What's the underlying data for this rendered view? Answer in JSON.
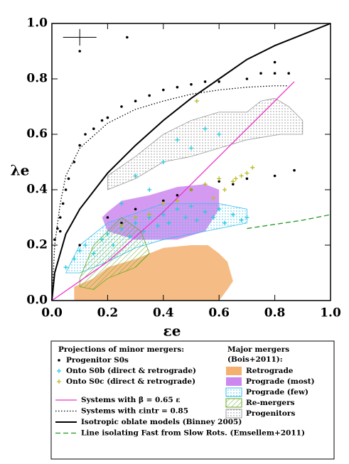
{
  "chart_data": {
    "type": "scatter",
    "x_label": "εe",
    "y_label": "λe",
    "xlim": [
      0,
      1
    ],
    "ylim": [
      0,
      1
    ],
    "xticks": [
      {
        "value": 0,
        "label": "0.0"
      },
      {
        "value": 0.2,
        "label": "0.2"
      },
      {
        "value": 0.4,
        "label": "0.4"
      },
      {
        "value": 0.6,
        "label": "0.6"
      },
      {
        "value": 0.8,
        "label": "0.8"
      },
      {
        "value": 1,
        "label": "1.0"
      }
    ],
    "yticks": [
      {
        "value": 0,
        "label": "0.0"
      },
      {
        "value": 0.2,
        "label": "0.2"
      },
      {
        "value": 0.4,
        "label": "0.4"
      },
      {
        "value": 0.6,
        "label": "0.6"
      },
      {
        "value": 0.8,
        "label": "0.8"
      },
      {
        "value": 1,
        "label": "1.0"
      }
    ],
    "error_bar": {
      "x": 0.1,
      "y": 0.95,
      "xerr": 0.06,
      "yerr": 0.03
    },
    "regions": [
      {
        "name": "Retrograde",
        "color": "#f5b070",
        "fill": "solid",
        "x": [
          0.08,
          0.08,
          0.15,
          0.2,
          0.3,
          0.4,
          0.5,
          0.56,
          0.6,
          0.63,
          0.65,
          0.63,
          0.6
        ],
        "y": [
          0.0,
          0.05,
          0.08,
          0.12,
          0.15,
          0.19,
          0.2,
          0.2,
          0.17,
          0.14,
          0.07,
          0.04,
          0.0
        ]
      },
      {
        "name": "Prograde (most)",
        "color": "#cc88ee",
        "fill": "solid",
        "x": [
          0.2,
          0.25,
          0.35,
          0.45,
          0.55,
          0.6,
          0.6,
          0.55,
          0.45,
          0.3,
          0.2,
          0.18
        ],
        "y": [
          0.32,
          0.36,
          0.38,
          0.41,
          0.42,
          0.4,
          0.33,
          0.25,
          0.22,
          0.22,
          0.25,
          0.3
        ]
      },
      {
        "name": "Prograde (few)",
        "color": "#33bbee",
        "fill": "dots",
        "x": [
          0.05,
          0.1,
          0.2,
          0.4,
          0.6,
          0.7,
          0.7,
          0.55,
          0.4,
          0.3,
          0.2,
          0.1
        ],
        "y": [
          0.1,
          0.2,
          0.28,
          0.35,
          0.35,
          0.33,
          0.28,
          0.25,
          0.22,
          0.19,
          0.14,
          0.1
        ]
      },
      {
        "name": "Re-mergers",
        "color": "#66aa22",
        "fill": "hatch",
        "x": [
          0.1,
          0.15,
          0.25,
          0.32,
          0.35,
          0.3,
          0.2,
          0.15,
          0.1
        ],
        "y": [
          0.08,
          0.2,
          0.3,
          0.25,
          0.17,
          0.12,
          0.08,
          0.04,
          0.05
        ]
      },
      {
        "name": "Progenitors",
        "color": "#999999",
        "fill": "dots",
        "x": [
          0.2,
          0.3,
          0.4,
          0.5,
          0.6,
          0.7,
          0.75,
          0.8,
          0.85,
          0.9,
          0.9,
          0.82,
          0.7,
          0.6,
          0.5,
          0.4,
          0.3,
          0.2
        ],
        "y": [
          0.45,
          0.52,
          0.6,
          0.65,
          0.68,
          0.68,
          0.72,
          0.73,
          0.7,
          0.65,
          0.6,
          0.6,
          0.58,
          0.55,
          0.52,
          0.5,
          0.44,
          0.4
        ]
      }
    ],
    "lines": [
      {
        "name": "Systems with β = 0.65 ε",
        "color": "#ee33cc",
        "dash": "solid",
        "x": [
          0,
          0.2,
          0.4,
          0.6,
          0.87
        ],
        "y": [
          0,
          0.14,
          0.32,
          0.52,
          0.79
        ]
      },
      {
        "name": "Systems with εintr = 0.85",
        "color": "#000000",
        "dash": "dotted",
        "x": [
          0,
          0.01,
          0.03,
          0.05,
          0.1,
          0.2,
          0.3,
          0.4,
          0.5,
          0.6,
          0.7,
          0.8,
          0.85
        ],
        "y": [
          0,
          0.2,
          0.35,
          0.45,
          0.55,
          0.64,
          0.69,
          0.72,
          0.745,
          0.76,
          0.77,
          0.775,
          0.775
        ]
      },
      {
        "name": "Isotropic oblate models (Binney 2005)",
        "color": "#000000",
        "dash": "solid",
        "x": [
          0,
          0.01,
          0.05,
          0.1,
          0.2,
          0.3,
          0.4,
          0.5,
          0.6,
          0.7,
          0.8,
          0.9,
          1.0
        ],
        "y": [
          0,
          0.1,
          0.24,
          0.33,
          0.46,
          0.56,
          0.65,
          0.73,
          0.8,
          0.87,
          0.92,
          0.96,
          1.0
        ]
      },
      {
        "name": "Line isolating Fast from Slow Rots. (Emsellem+2011)",
        "color": "#229922",
        "dash": "dashed",
        "x": [
          0.7,
          0.8,
          0.9,
          1.0
        ],
        "y": [
          0.26,
          0.275,
          0.29,
          0.31
        ]
      }
    ],
    "series": [
      {
        "name": "Progenitor S0s",
        "color": "#000000",
        "marker": "dot",
        "x": [
          0.01,
          0.02,
          0.03,
          0.04,
          0.05,
          0.06,
          0.08,
          0.1,
          0.12,
          0.15,
          0.18,
          0.2,
          0.25,
          0.3,
          0.35,
          0.4,
          0.45,
          0.5,
          0.55,
          0.6,
          0.7,
          0.75,
          0.8,
          0.85,
          0.1,
          0.27,
          0.8,
          0.03,
          0.1,
          0.2,
          0.3,
          0.4,
          0.5,
          0.6,
          0.7,
          0.8,
          0.87,
          0.25,
          0.45,
          0.65
        ],
        "y": [
          0.22,
          0.26,
          0.3,
          0.35,
          0.4,
          0.44,
          0.5,
          0.56,
          0.6,
          0.62,
          0.65,
          0.66,
          0.7,
          0.72,
          0.74,
          0.76,
          0.77,
          0.78,
          0.79,
          0.79,
          0.8,
          0.82,
          0.82,
          0.82,
          0.9,
          0.95,
          0.86,
          0.25,
          0.2,
          0.3,
          0.33,
          0.36,
          0.4,
          0.43,
          0.44,
          0.45,
          0.47,
          0.28,
          0.38,
          0.42
        ]
      },
      {
        "name": "Onto S0b (direct & retrograde)",
        "color": "#22ccdd",
        "marker": "plus",
        "x": [
          0.05,
          0.08,
          0.1,
          0.12,
          0.15,
          0.18,
          0.2,
          0.22,
          0.25,
          0.28,
          0.3,
          0.33,
          0.35,
          0.38,
          0.4,
          0.42,
          0.45,
          0.48,
          0.5,
          0.52,
          0.55,
          0.58,
          0.6,
          0.62,
          0.65,
          0.68,
          0.7,
          0.3,
          0.4,
          0.5,
          0.55,
          0.45,
          0.35,
          0.25,
          0.6
        ],
        "y": [
          0.12,
          0.15,
          0.18,
          0.2,
          0.17,
          0.22,
          0.24,
          0.2,
          0.26,
          0.23,
          0.28,
          0.25,
          0.3,
          0.27,
          0.31,
          0.28,
          0.33,
          0.3,
          0.34,
          0.29,
          0.32,
          0.3,
          0.33,
          0.28,
          0.31,
          0.29,
          0.3,
          0.45,
          0.5,
          0.55,
          0.62,
          0.58,
          0.4,
          0.35,
          0.6
        ]
      },
      {
        "name": "Onto S0c (direct & retrograde)",
        "color": "#bbbb22",
        "marker": "plus",
        "x": [
          0.3,
          0.4,
          0.5,
          0.55,
          0.6,
          0.62,
          0.65,
          0.68,
          0.7,
          0.72,
          0.58,
          0.45,
          0.35,
          0.25,
          0.52,
          0.66
        ],
        "y": [
          0.3,
          0.35,
          0.4,
          0.42,
          0.44,
          0.4,
          0.43,
          0.45,
          0.46,
          0.48,
          0.37,
          0.36,
          0.31,
          0.27,
          0.72,
          0.44
        ]
      }
    ],
    "legend_title": "Projections of minor mergers:",
    "region_legend_title": [
      "Major mergers",
      "(Bois+2011):"
    ]
  }
}
